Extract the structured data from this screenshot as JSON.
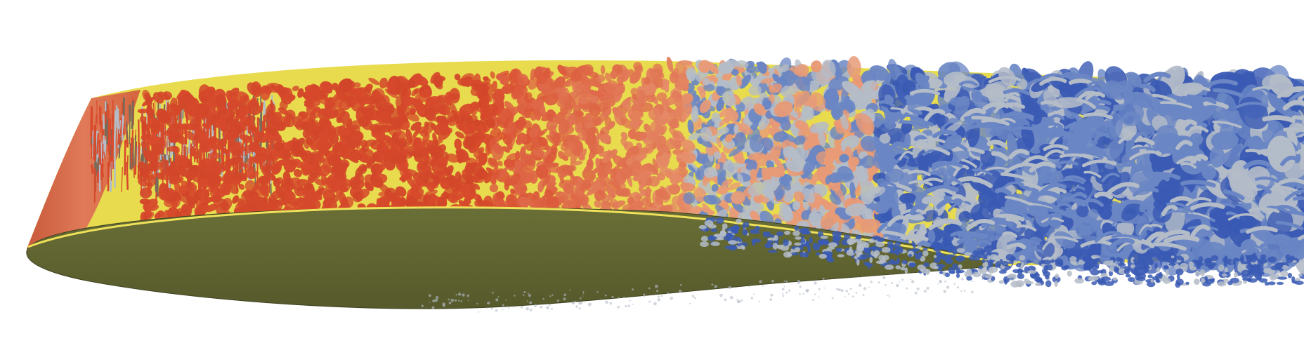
{
  "scene": {
    "subject": "airfoil-turbulence-visualization",
    "background_color": "#ffffff",
    "colors": {
      "airfoil_face": "#5f6432",
      "airfoil_edge": "#3f4220",
      "wall_surface": "#e8dc4e",
      "leading_edge": "#d86a48",
      "structure_hot": "#d84a2c",
      "structure_warm": "#e89a76",
      "structure_neutral": "#b4bcc8",
      "structure_cool": "#6a86c4",
      "structure_cold": "#3a5ab4"
    }
  }
}
